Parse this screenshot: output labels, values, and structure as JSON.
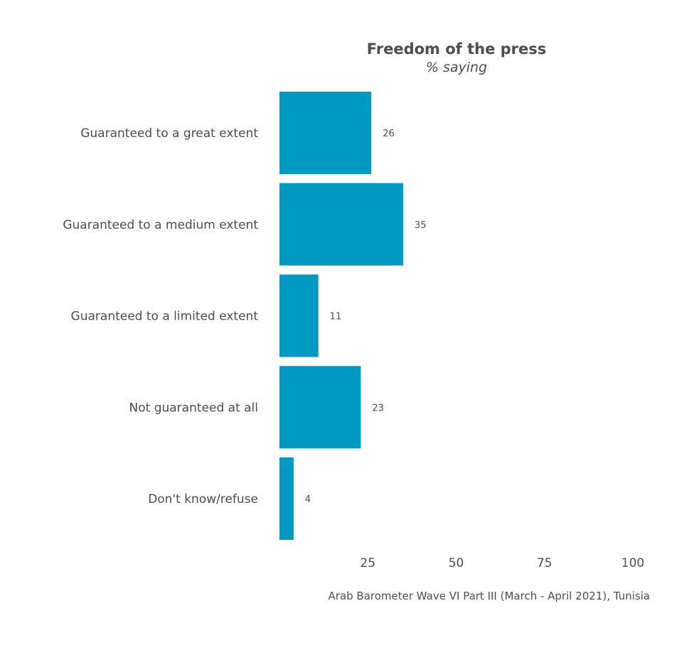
{
  "chart_data": {
    "type": "bar",
    "orientation": "horizontal",
    "title": "Freedom of the press",
    "subtitle": "% saying",
    "categories": [
      "Guaranteed to a great extent",
      "Guaranteed to a medium extent",
      "Guaranteed to a limited extent",
      "Not guaranteed at all",
      "Don't know/refuse"
    ],
    "values": [
      26,
      35,
      11,
      23,
      4
    ],
    "value_labels": [
      "26",
      "35",
      "11",
      "23",
      "4"
    ],
    "xlim": [
      0,
      100
    ],
    "x_ticks": [
      25,
      50,
      75,
      100
    ],
    "x_tick_labels": [
      "25",
      "50",
      "75",
      "100"
    ],
    "grid": false,
    "legend": "none",
    "bar_color": "#0099c1",
    "caption": "Arab Barometer Wave VI Part III (March - April 2021), Tunisia"
  }
}
